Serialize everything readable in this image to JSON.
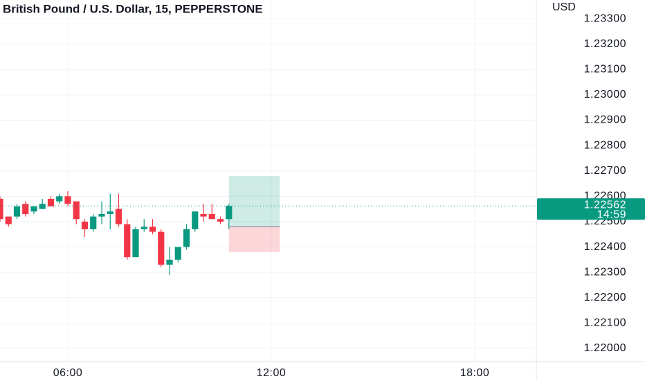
{
  "chart_data": {
    "type": "candlestick",
    "title": "British Pound / U.S. Dollar, 15, PEPPERSTONE",
    "y_axis_unit": "USD",
    "x": [
      4.0,
      4.25,
      4.5,
      4.75,
      5.0,
      5.25,
      5.5,
      5.75,
      6.0,
      6.25,
      6.5,
      6.75,
      7.0,
      7.25,
      7.5,
      7.75,
      8.0,
      8.25,
      8.5,
      8.75,
      9.0,
      9.25,
      9.5,
      9.75,
      10.0,
      10.25,
      10.5,
      10.75
    ],
    "open": [
      1.2259,
      1.2252,
      1.2252,
      1.2257,
      1.2254,
      1.2255,
      1.2259,
      1.2258,
      1.226,
      1.2258,
      1.225,
      1.2247,
      1.2252,
      1.2253,
      1.2255,
      1.2249,
      1.2236,
      1.2247,
      1.2248,
      1.2246,
      1.2233,
      1.2235,
      1.224,
      1.2247,
      1.2253,
      1.2253,
      1.2251,
      1.2251
    ],
    "high": [
      1.226,
      1.2252,
      1.2257,
      1.2258,
      1.2256,
      1.2259,
      1.226,
      1.2261,
      1.2262,
      1.2258,
      1.2251,
      1.2253,
      1.2258,
      1.2261,
      1.2261,
      1.2251,
      1.2248,
      1.2251,
      1.2251,
      1.2247,
      1.224,
      1.224,
      1.2249,
      1.2254,
      1.2257,
      1.2257,
      1.2252,
      1.2257
    ],
    "low": [
      1.225,
      1.2248,
      1.2251,
      1.2252,
      1.2253,
      1.2255,
      1.2256,
      1.2257,
      1.2256,
      1.2249,
      1.2244,
      1.2246,
      1.2249,
      1.2247,
      1.2248,
      1.2235,
      1.2236,
      1.2246,
      1.2245,
      1.2232,
      1.2229,
      1.2234,
      1.2239,
      1.2246,
      1.225,
      1.2251,
      1.2249,
      1.2247
    ],
    "close": [
      1.2251,
      1.2249,
      1.2256,
      1.2253,
      1.2256,
      1.2257,
      1.2256,
      1.226,
      1.2257,
      1.2251,
      1.2247,
      1.2252,
      1.2253,
      1.2254,
      1.2249,
      1.2236,
      1.2247,
      1.2248,
      1.2246,
      1.2233,
      1.2235,
      1.224,
      1.2247,
      1.2254,
      1.2252,
      1.2251,
      1.225,
      1.22562
    ],
    "up_color": "#089981",
    "down_color": "#f23645",
    "countdown": "14:59",
    "position": {
      "x": [
        10.75,
        12.25
      ],
      "target": 1.2268,
      "entry": 1.2248,
      "stop": 1.2238
    },
    "xlim": [
      4.0,
      19.816
    ],
    "ylim": [
      1.21948,
      1.23374
    ],
    "xticks": [
      {
        "value": 6,
        "label": "06:00"
      },
      {
        "value": 12,
        "label": "12:00"
      },
      {
        "value": 18,
        "label": "18:00"
      }
    ],
    "yticks": [
      {
        "value": 1.22,
        "label": "1.22000"
      },
      {
        "value": 1.221,
        "label": "1.22100"
      },
      {
        "value": 1.222,
        "label": "1.22200"
      },
      {
        "value": 1.223,
        "label": "1.22300"
      },
      {
        "value": 1.224,
        "label": "1.22400"
      },
      {
        "value": 1.225,
        "label": "1.22500"
      },
      {
        "value": 1.226,
        "label": "1.22600"
      },
      {
        "value": 1.227,
        "label": "1.22700"
      },
      {
        "value": 1.228,
        "label": "1.22800"
      },
      {
        "value": 1.229,
        "label": "1.22900"
      },
      {
        "value": 1.23,
        "label": "1.23000"
      },
      {
        "value": 1.231,
        "label": "1.23100"
      },
      {
        "value": 1.232,
        "label": "1.23200"
      },
      {
        "value": 1.233,
        "label": "1.23300"
      }
    ],
    "grid": true
  }
}
